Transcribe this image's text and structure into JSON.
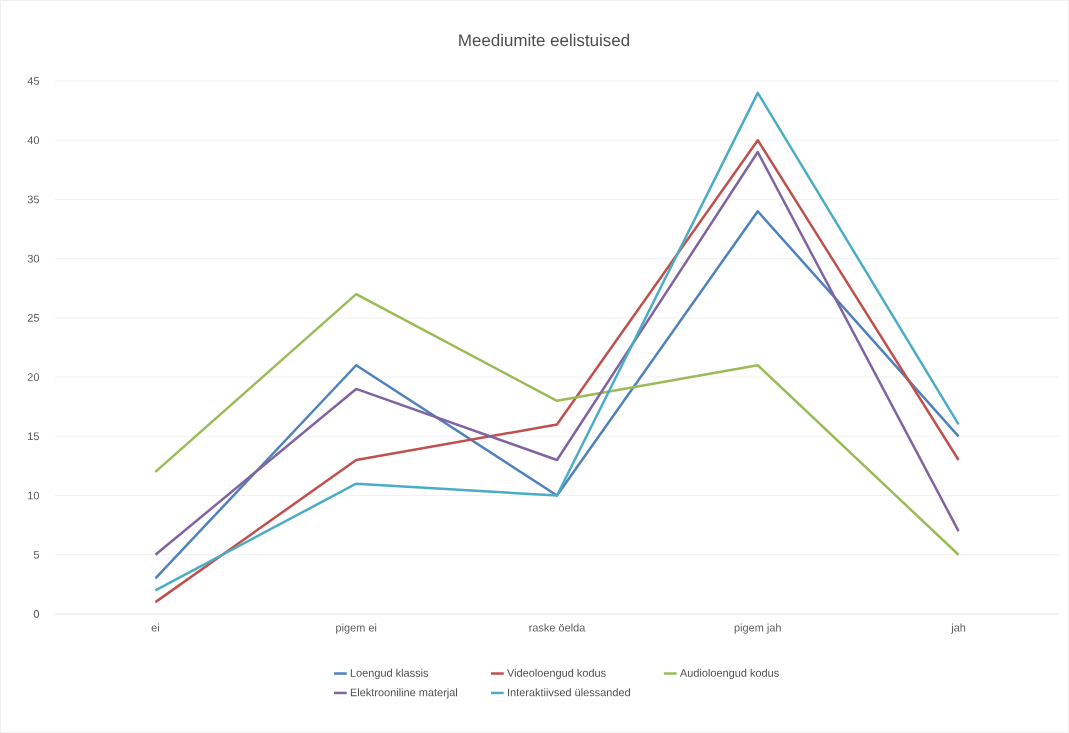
{
  "chart_data": {
    "type": "line",
    "title": "Meediumite eelistuised",
    "categories": [
      "ei",
      "pigem ei",
      "raske öelda",
      "pigem jah",
      "jah"
    ],
    "series": [
      {
        "name": "Loengud klassis",
        "color": "#4f81bd",
        "values": [
          3,
          21,
          10,
          34,
          15
        ]
      },
      {
        "name": "Videoloengud kodus",
        "color": "#c0504d",
        "values": [
          1,
          13,
          16,
          40,
          13
        ]
      },
      {
        "name": "Audioloengud kodus",
        "color": "#9bbb59",
        "values": [
          12,
          27,
          18,
          21,
          5
        ]
      },
      {
        "name": "Elektrooniline materjal",
        "color": "#8064a2",
        "values": [
          5,
          19,
          13,
          39,
          7
        ]
      },
      {
        "name": "Interaktiivsed ülessanded",
        "color": "#4bacc6",
        "values": [
          2,
          11,
          10,
          44,
          16
        ]
      }
    ],
    "ylim": [
      0,
      45
    ],
    "yticks": [
      0,
      5,
      10,
      15,
      20,
      25,
      30,
      35,
      40,
      45
    ],
    "grid": "y",
    "legend": "bottom",
    "marker": "none",
    "line_style": "solid"
  }
}
